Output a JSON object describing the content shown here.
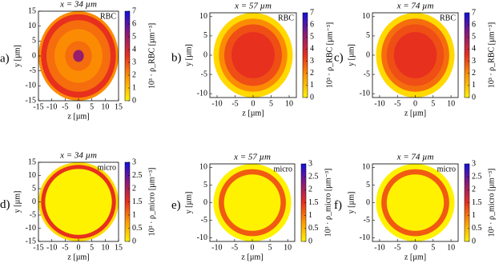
{
  "chart_data": [
    {
      "type": "radial-heatmap",
      "label": "a)",
      "title": "x = 34 µm",
      "tag": "RBC",
      "xlabel": "z [µm]",
      "ylabel": "y [µm]",
      "colorbar_label": "10³ · ρ_RBC [µm⁻³]",
      "xlim": [
        -15,
        15
      ],
      "ylim": [
        -15,
        15
      ],
      "xticks": [
        -15,
        -10,
        -5,
        0,
        5,
        10,
        15
      ],
      "yticks": [
        -15,
        -10,
        -5,
        0,
        5,
        10,
        15
      ],
      "clim": [
        0,
        7
      ],
      "cticks": [
        0,
        1,
        2,
        3,
        4,
        5,
        6,
        7
      ],
      "colormap": [
        "#fff200",
        "#ff9a00",
        "#e8301e",
        "#8b1a7a",
        "#1010e0"
      ],
      "radii": [
        0,
        2,
        5,
        9,
        12,
        14,
        15
      ],
      "values": [
        5,
        2.5,
        2,
        2.5,
        3.5,
        2
      ]
    },
    {
      "type": "radial-heatmap",
      "label": "b)",
      "title": "x = 57 µm",
      "tag": "RBC",
      "xlabel": "z [µm]",
      "ylabel": "y [µm]",
      "colorbar_label": "10³ · ρ_RBC [µm⁻³]",
      "xlim": [
        -12,
        12
      ],
      "ylim": [
        -11,
        11
      ],
      "xticks": [
        -10,
        -5,
        0,
        5,
        10
      ],
      "yticks": [
        -10,
        -5,
        0,
        5,
        10
      ],
      "clim": [
        0,
        7
      ],
      "cticks": [
        0,
        1,
        2,
        3,
        4,
        5,
        6,
        7
      ],
      "colormap": [
        "#fff200",
        "#ff9a00",
        "#e8301e",
        "#8b1a7a",
        "#1010e0"
      ],
      "radii": [
        0,
        6,
        8,
        9.5,
        11
      ],
      "values": [
        3.5,
        3,
        2,
        0.5
      ]
    },
    {
      "type": "radial-heatmap",
      "label": "c)",
      "title": "x = 74 µm",
      "tag": "RBC",
      "xlabel": "z [µm]",
      "ylabel": "y [µm]",
      "colorbar_label": "10³ · ρ_RBC [µm⁻³]",
      "xlim": [
        -12,
        12
      ],
      "ylim": [
        -11,
        11
      ],
      "xticks": [
        -10,
        -5,
        0,
        5,
        10
      ],
      "yticks": [
        -10,
        -5,
        0,
        5,
        10
      ],
      "clim": [
        0,
        7
      ],
      "cticks": [
        0,
        1,
        2,
        3,
        4,
        5,
        6,
        7
      ],
      "colormap": [
        "#fff200",
        "#ff9a00",
        "#e8301e",
        "#8b1a7a",
        "#1010e0"
      ],
      "radii": [
        0,
        6,
        8,
        9.5,
        11
      ],
      "values": [
        3.5,
        3,
        2.5,
        0.5
      ]
    },
    {
      "type": "radial-heatmap",
      "label": "d)",
      "title": "x = 34 µm",
      "tag": "micro",
      "xlabel": "z [µm]",
      "ylabel": "y [µm]",
      "colorbar_label": "10³ · ρ_micro [µm⁻³]",
      "xlim": [
        -15,
        15
      ],
      "ylim": [
        -15,
        15
      ],
      "xticks": [
        -15,
        -10,
        -5,
        0,
        5,
        10,
        15
      ],
      "yticks": [
        -15,
        -10,
        -5,
        0,
        5,
        10,
        15
      ],
      "clim": [
        0,
        3
      ],
      "cticks": [
        0,
        0.5,
        1,
        1.5,
        2,
        2.5,
        3
      ],
      "colormap": [
        "#fff200",
        "#ff9a00",
        "#e8301e",
        "#8b1a7a",
        "#1010e0"
      ],
      "radii": [
        0,
        12.5,
        14,
        15
      ],
      "values": [
        0,
        1.5,
        0.2
      ]
    },
    {
      "type": "radial-heatmap",
      "label": "e)",
      "title": "x = 57 µm",
      "tag": "micro",
      "xlabel": "z [µm]",
      "ylabel": "y [µm]",
      "colorbar_label": "10³ · ρ_micro [µm⁻³]",
      "xlim": [
        -12,
        12
      ],
      "ylim": [
        -11,
        11
      ],
      "xticks": [
        -10,
        -5,
        0,
        5,
        10
      ],
      "yticks": [
        -10,
        -5,
        0,
        5,
        10
      ],
      "clim": [
        0,
        3
      ],
      "cticks": [
        0,
        0.5,
        1,
        1.5,
        2,
        2.5,
        3
      ],
      "colormap": [
        "#fff200",
        "#ff9a00",
        "#e8301e",
        "#8b1a7a",
        "#1010e0"
      ],
      "radii": [
        0,
        8,
        9.5,
        11
      ],
      "values": [
        0,
        1.2,
        0
      ]
    },
    {
      "type": "radial-heatmap",
      "label": "f)",
      "title": "x = 74 µm",
      "tag": "micro",
      "xlabel": "z [µm]",
      "ylabel": "y [µm]",
      "colorbar_label": "10³ · ρ_micro [µm⁻³]",
      "xlim": [
        -12,
        12
      ],
      "ylim": [
        -11,
        11
      ],
      "xticks": [
        -10,
        -5,
        0,
        5,
        10
      ],
      "yticks": [
        -10,
        -5,
        0,
        5,
        10
      ],
      "clim": [
        0,
        3
      ],
      "cticks": [
        0,
        0.5,
        1,
        1.5,
        2,
        2.5,
        3
      ],
      "colormap": [
        "#fff200",
        "#ff9a00",
        "#e8301e",
        "#8b1a7a",
        "#1010e0"
      ],
      "radii": [
        0,
        8,
        9.5,
        11
      ],
      "values": [
        0,
        1.2,
        0
      ]
    }
  ]
}
